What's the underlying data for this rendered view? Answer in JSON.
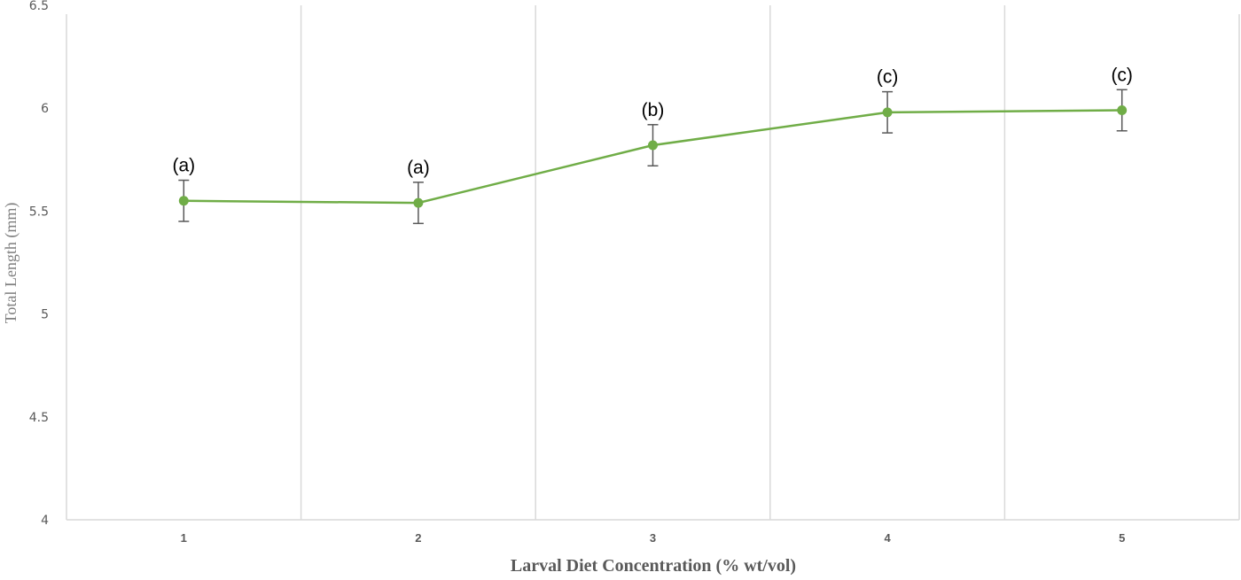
{
  "chart_data": {
    "type": "line",
    "title": "",
    "xlabel": "Larval Diet Concentration (% wt/vol)",
    "ylabel": "Total Length (mm)",
    "categories": [
      "1",
      "2",
      "3",
      "4",
      "5"
    ],
    "ylim": [
      4,
      6.5
    ],
    "yticks": [
      "4",
      "4.5",
      "5",
      "5.5",
      "6",
      "6.5"
    ],
    "grid": "vertical",
    "legend": null,
    "series": [
      {
        "name": "Total Length",
        "color": "#70ad47",
        "values": [
          5.55,
          5.54,
          5.82,
          5.98,
          5.99
        ],
        "error": [
          0.1,
          0.1,
          0.1,
          0.1,
          0.1
        ]
      }
    ],
    "annotations": [
      "(a)",
      "(a)",
      "(b)",
      "(c)",
      "(c)"
    ]
  },
  "colors": {
    "line": "#70ad47",
    "error_bar": "#595959",
    "grid": "#d9d9d9"
  }
}
